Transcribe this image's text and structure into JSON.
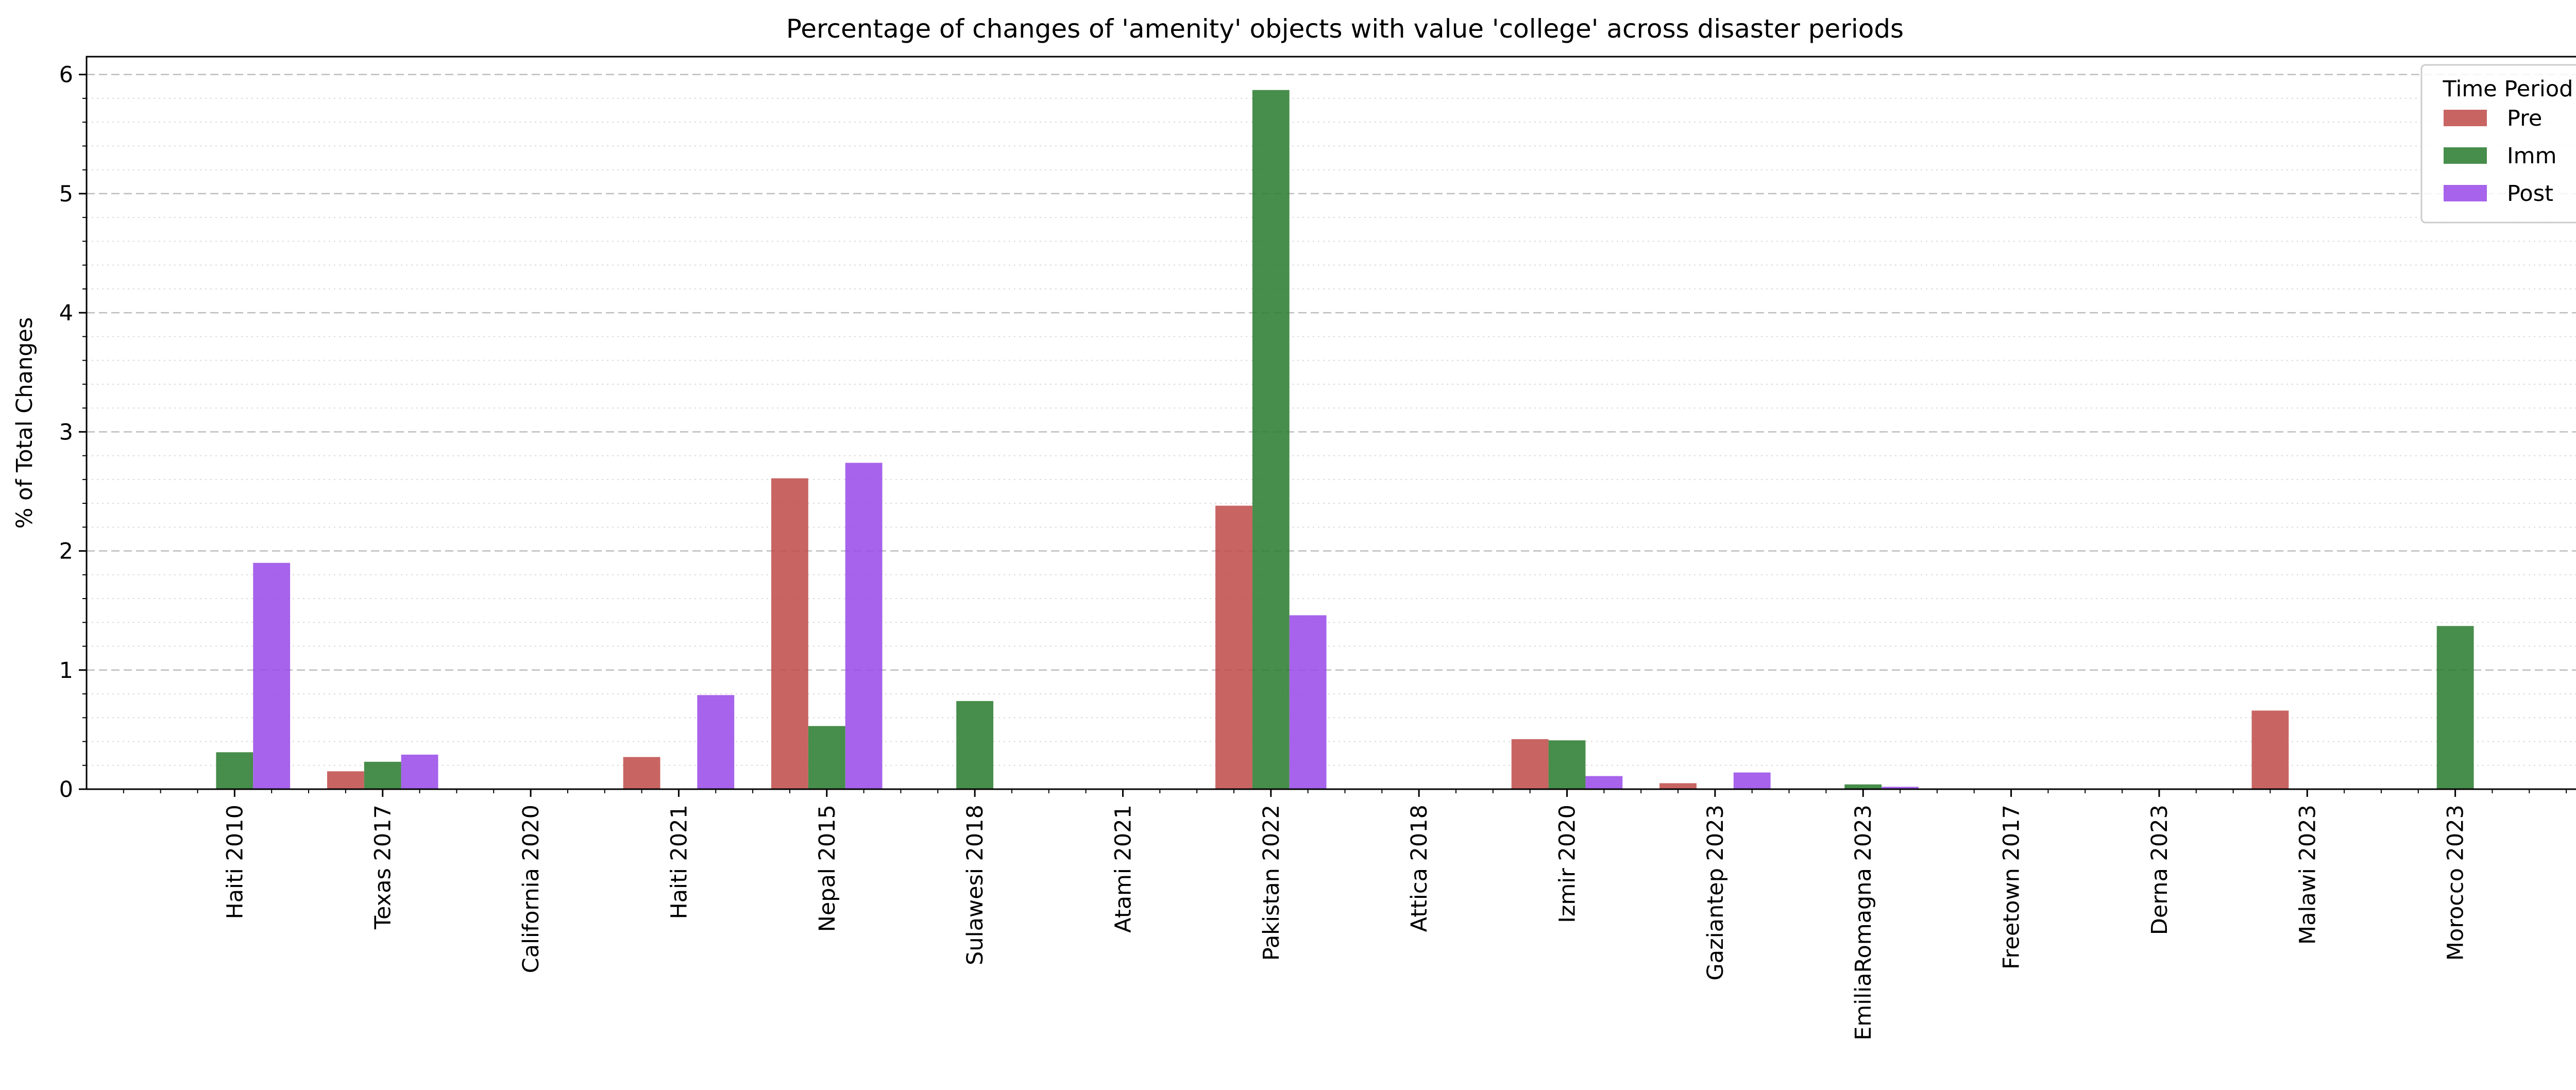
{
  "chart_data": {
    "type": "bar",
    "title": "Percentage of changes of 'amenity' objects with value 'college' across disaster periods",
    "xlabel": "",
    "ylabel": "% of Total Changes",
    "ylim": [
      0,
      6.15
    ],
    "yticks": [
      "0",
      "1",
      "2",
      "3",
      "4",
      "5",
      "6"
    ],
    "grid": "horizontal dashed major, dotted minor",
    "legend_title": "Time Period",
    "legend_position": "top-right",
    "categories": [
      "Haiti 2010",
      "Texas 2017",
      "California 2020",
      "Haiti 2021",
      "Nepal 2015",
      "Sulawesi 2018",
      "Atami 2021",
      "Pakistan 2022",
      "Attica 2018",
      "Izmir 2020",
      "Gaziantep 2023",
      "EmiliaRomagna 2023",
      "Freetown 2017",
      "Derna 2023",
      "Malawi 2023",
      "Morocco 2023"
    ],
    "series": [
      {
        "name": "Pre",
        "color": "#c0504d",
        "values": [
          0,
          0.15,
          0,
          0.27,
          2.61,
          0,
          0,
          2.38,
          0,
          0.42,
          0.05,
          0,
          0,
          0,
          0.66,
          0
        ]
      },
      {
        "name": "Imm",
        "color": "#2e7d32",
        "values": [
          0.31,
          0.23,
          0,
          0,
          0.53,
          0.74,
          0,
          5.87,
          0,
          0.41,
          0,
          0.04,
          0,
          0,
          0,
          1.37
        ]
      },
      {
        "name": "Post",
        "color": "#9b4de8",
        "values": [
          1.9,
          0.29,
          0,
          0.79,
          2.74,
          0,
          0,
          1.46,
          0,
          0.11,
          0.14,
          0.02,
          0,
          0,
          0,
          0
        ]
      }
    ]
  }
}
